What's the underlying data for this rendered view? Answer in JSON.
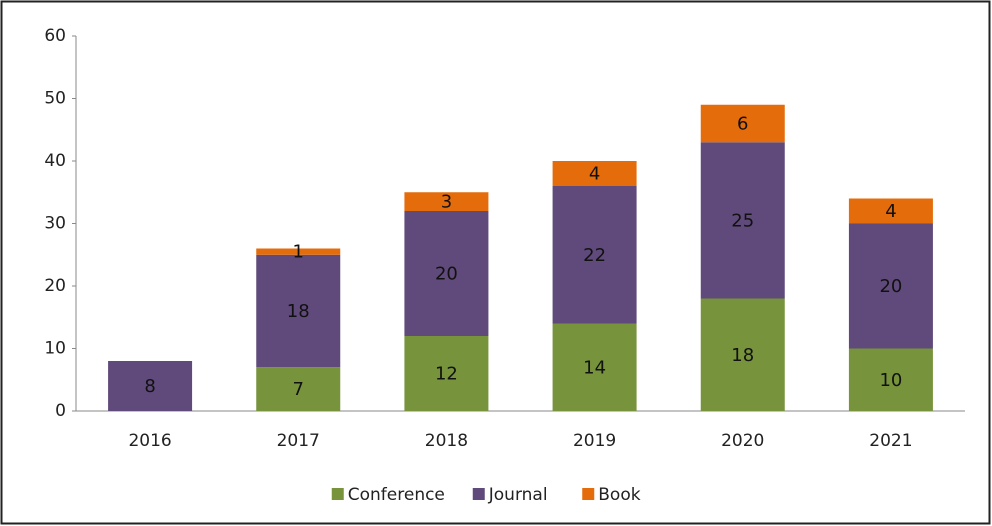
{
  "chart_data": {
    "type": "stacked_bar",
    "categories": [
      "2016",
      "2017",
      "2018",
      "2019",
      "2020",
      "2021"
    ],
    "series": [
      {
        "name": "Conference",
        "color": "#77933c",
        "values": [
          null,
          7,
          12,
          14,
          18,
          10
        ]
      },
      {
        "name": "Journal",
        "color": "#604a7b",
        "values": [
          8,
          18,
          20,
          22,
          25,
          20
        ]
      },
      {
        "name": "Book",
        "color": "#e46c0a",
        "values": [
          null,
          1,
          3,
          4,
          6,
          4
        ]
      }
    ],
    "ylim": [
      0,
      60
    ],
    "yticks": [
      0,
      10,
      20,
      30,
      40,
      50,
      60
    ],
    "grid": false,
    "legend": "bottom"
  }
}
